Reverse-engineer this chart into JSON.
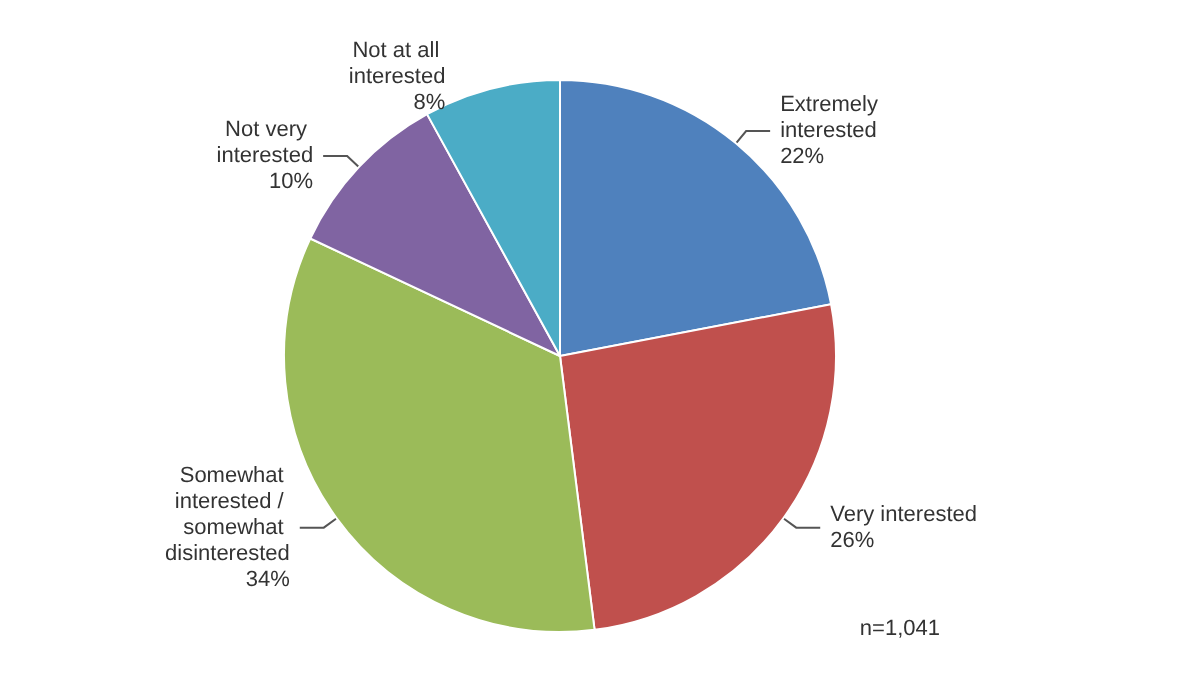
{
  "chart_data": {
    "type": "pie",
    "categories": [
      "Extremely interested",
      "Very interested",
      "Somewhat interested / somewhat disinterested",
      "Not very interested",
      "Not at all interested"
    ],
    "values": [
      22,
      26,
      34,
      10,
      8
    ],
    "colors": [
      "#4f81bd",
      "#c0504d",
      "#9bbb59",
      "#8064a2",
      "#4bacc6"
    ],
    "value_labels": [
      "22%",
      "26%",
      "34%",
      "10%",
      "8%"
    ],
    "legend": false,
    "annotations": [
      "n=1,041"
    ]
  }
}
